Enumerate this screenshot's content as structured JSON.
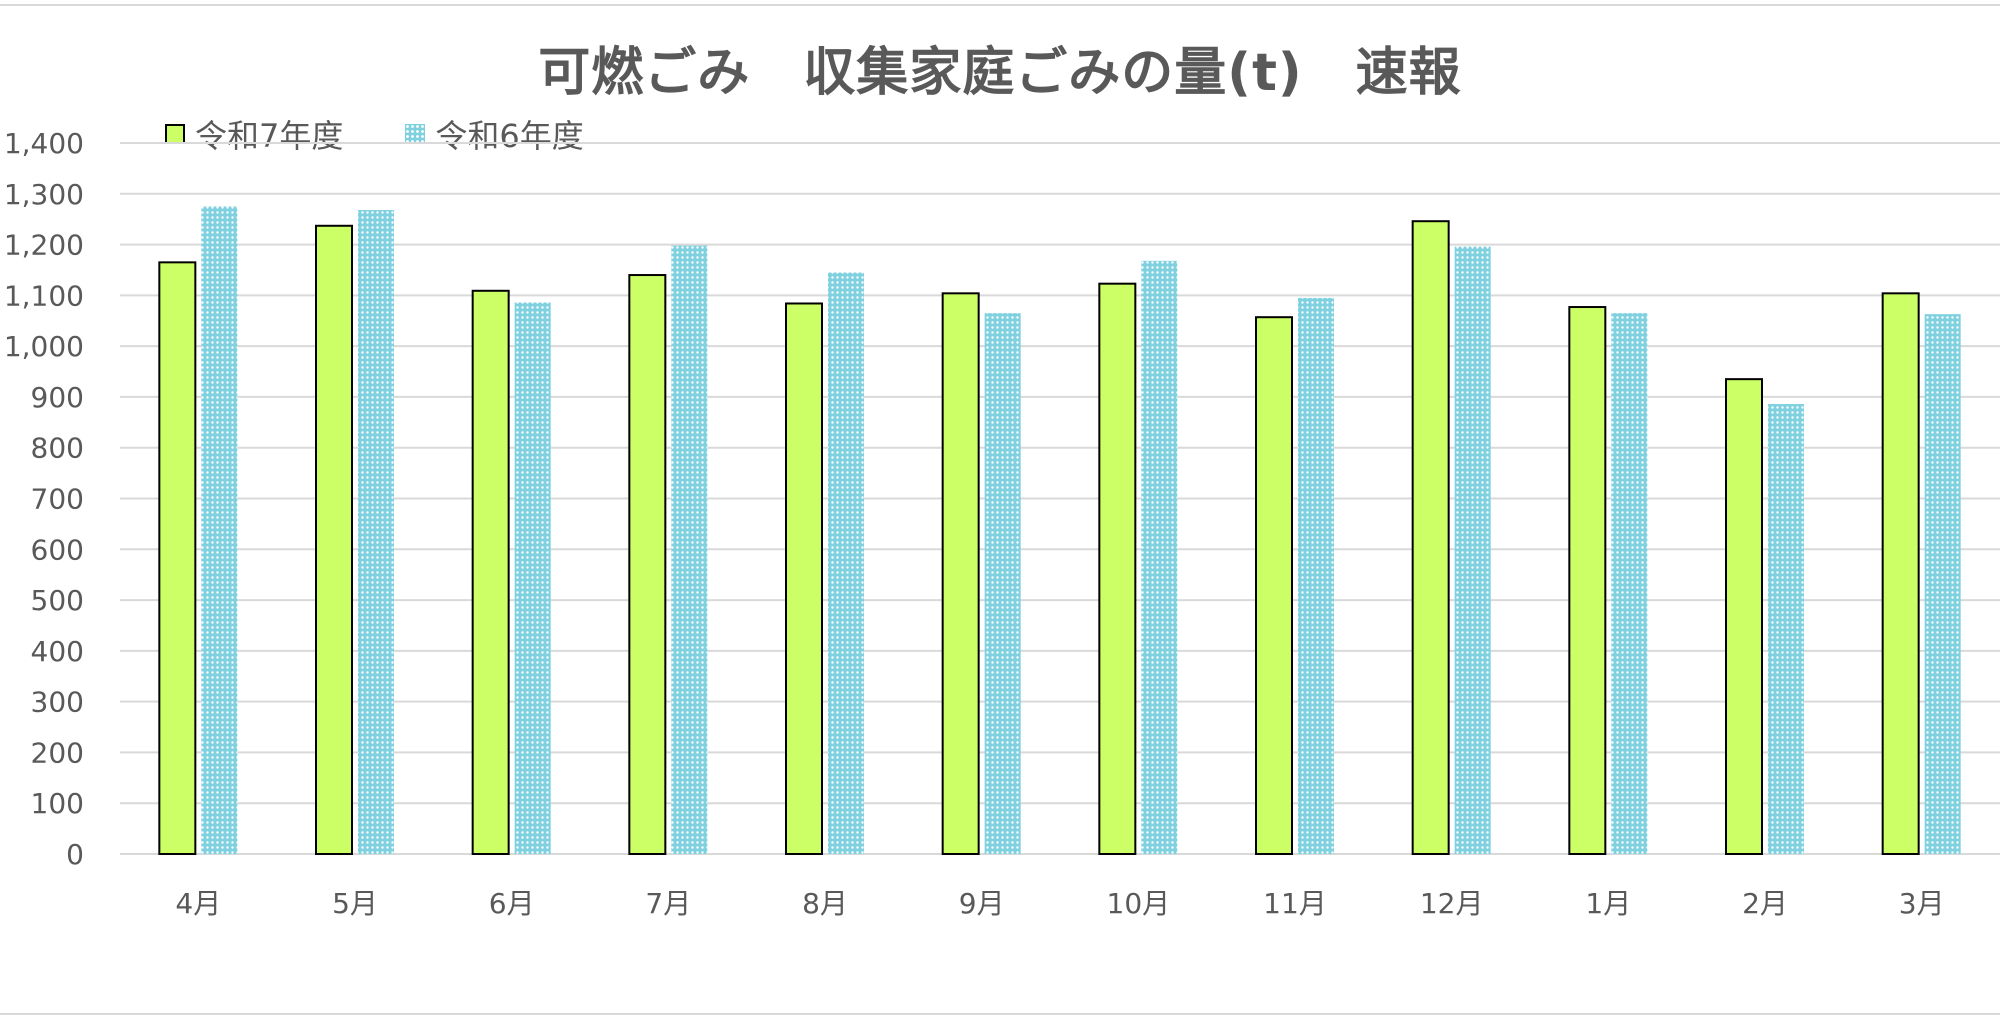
{
  "chart_data": {
    "type": "bar",
    "title": "可燃ごみ　収集家庭ごみの量(t)　速報",
    "categories": [
      "4月",
      "5月",
      "6月",
      "7月",
      "8月",
      "9月",
      "10月",
      "11月",
      "12月",
      "1月",
      "2月",
      "3月"
    ],
    "series": [
      {
        "name": "令和7年度",
        "color": "#ccff66",
        "values": [
          1165,
          1237,
          1109,
          1140,
          1084,
          1104,
          1123,
          1057,
          1246,
          1077,
          935,
          1104
        ]
      },
      {
        "name": "令和6年度",
        "color": "#7fd1e0",
        "values": [
          1275,
          1268,
          1086,
          1198,
          1145,
          1065,
          1168,
          1095,
          1196,
          1065,
          886,
          1063
        ]
      }
    ],
    "y_ticks": [
      "0",
      "100",
      "200",
      "300",
      "400",
      "500",
      "600",
      "700",
      "800",
      "900",
      "1,000",
      "1,100",
      "1,200",
      "1,300",
      "1,400"
    ],
    "ylim": [
      0,
      1400
    ],
    "grid": true,
    "legend_position": "top-left"
  }
}
